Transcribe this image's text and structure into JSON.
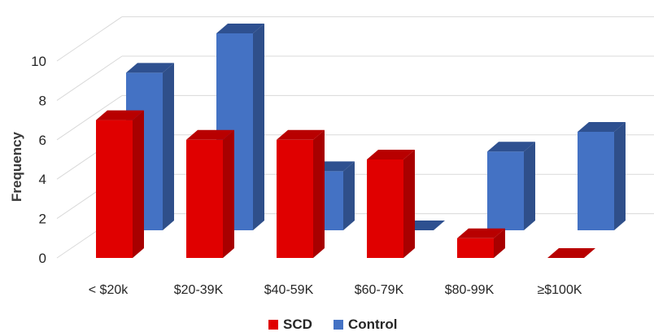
{
  "chart_data": {
    "type": "bar",
    "style": "3d-clustered-column",
    "title": "",
    "xlabel": "",
    "ylabel": "Frequency",
    "ylim": [
      0,
      10
    ],
    "yticks": [
      "0",
      "2",
      "4",
      "6",
      "8",
      "10"
    ],
    "grid": true,
    "legend_position": "bottom",
    "categories": [
      "< $20k",
      "$20-39K",
      "$40-59K",
      "$60-79K",
      "$80-99K",
      "≥$100K"
    ],
    "series": [
      {
        "name": "SCD",
        "values": [
          7,
          6,
          6,
          5,
          1,
          0
        ],
        "color": "#e00000",
        "side_color": "#a80000",
        "top_color": "#b80000"
      },
      {
        "name": "Control",
        "values": [
          8,
          10,
          3,
          0,
          4,
          5
        ],
        "color": "#4472c4",
        "side_color": "#2f4f8a",
        "top_color": "#2e5090"
      }
    ]
  }
}
